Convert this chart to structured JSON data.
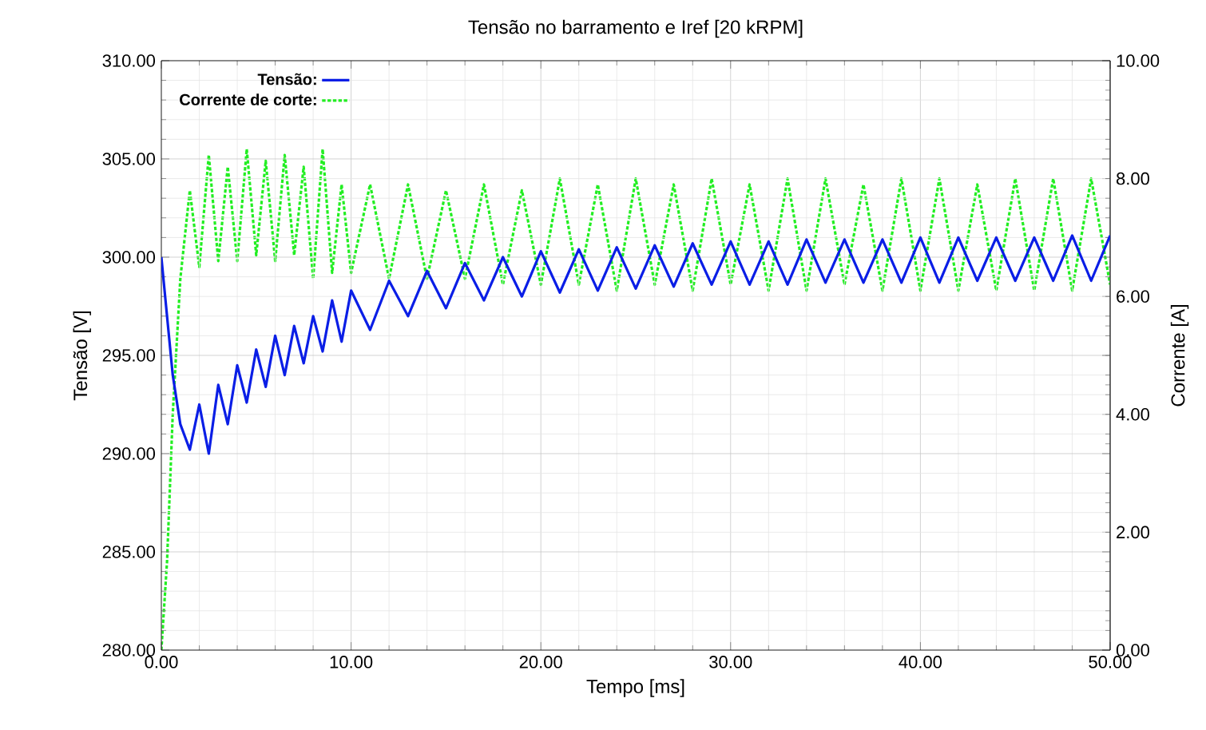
{
  "chart_data": {
    "type": "line",
    "title": "Tensão no barramento e Iref [20 kRPM]",
    "xlabel": "Tempo [ms]",
    "ylabel": "Tensão [V]",
    "y2label": "Corrente [A]",
    "xlim": [
      0,
      50
    ],
    "xticks": [
      {
        "value": 0,
        "label": "0.00"
      },
      {
        "value": 10,
        "label": "10.00"
      },
      {
        "value": 20,
        "label": "20.00"
      },
      {
        "value": 30,
        "label": "30.00"
      },
      {
        "value": 40,
        "label": "40.00"
      },
      {
        "value": 50,
        "label": "50.00"
      }
    ],
    "ylim": [
      280,
      310
    ],
    "yticks": [
      {
        "value": 280,
        "label": "280.00"
      },
      {
        "value": 285,
        "label": "285.00"
      },
      {
        "value": 290,
        "label": "290.00"
      },
      {
        "value": 295,
        "label": "295.00"
      },
      {
        "value": 300,
        "label": "300.00"
      },
      {
        "value": 305,
        "label": "305.00"
      },
      {
        "value": 310,
        "label": "310.00"
      }
    ],
    "y2lim": [
      0,
      10
    ],
    "y2ticks": [
      {
        "value": 0,
        "label": "0.00"
      },
      {
        "value": 2,
        "label": "2.00"
      },
      {
        "value": 4,
        "label": "4.00"
      },
      {
        "value": 6,
        "label": "6.00"
      },
      {
        "value": 8,
        "label": "8.00"
      },
      {
        "value": 10,
        "label": "10.00"
      }
    ],
    "grid": true,
    "legend": "top left",
    "marker": "none",
    "series": [
      {
        "name": "Tensão:",
        "color": "#0a1ee6",
        "line_style": "solid",
        "x": [
          0,
          0.3,
          0.6,
          1.0,
          1.5,
          2,
          2.5,
          3,
          3.5,
          4,
          4.5,
          5,
          5.5,
          6,
          6.5,
          7,
          7.5,
          8,
          8.5,
          9,
          9.5,
          10,
          11,
          12,
          13,
          14,
          15,
          16,
          17,
          18,
          19,
          20,
          21,
          22,
          23,
          24,
          25,
          26,
          27,
          28,
          29,
          30,
          31,
          32,
          33,
          34,
          35,
          36,
          37,
          38,
          39,
          40,
          41,
          42,
          43,
          44,
          45,
          46,
          47,
          48,
          49,
          50
        ],
        "values": [
          300,
          297,
          294,
          291.5,
          290.2,
          292.5,
          290,
          293.5,
          291.5,
          294.5,
          292.6,
          295.3,
          293.4,
          296,
          294,
          296.5,
          294.6,
          297,
          295.2,
          297.8,
          295.7,
          298.3,
          296.3,
          298.8,
          297,
          299.3,
          297.4,
          299.7,
          297.8,
          300,
          298,
          300.3,
          298.2,
          300.4,
          298.3,
          300.5,
          298.4,
          300.6,
          298.5,
          300.7,
          298.6,
          300.8,
          298.6,
          300.8,
          298.6,
          300.9,
          298.7,
          300.9,
          298.7,
          300.9,
          298.7,
          301,
          298.7,
          301,
          298.8,
          301,
          298.8,
          301,
          298.8,
          301.1,
          298.8,
          301.1
        ]
      },
      {
        "name": "Corrente de corte:",
        "color": "#22ee22",
        "line_style": "dashed",
        "axis": "y2",
        "x": [
          0,
          0.3,
          0.6,
          1.0,
          1.5,
          2,
          2.5,
          3,
          3.5,
          4,
          4.5,
          5,
          5.5,
          6,
          6.5,
          7,
          7.5,
          8,
          8.5,
          9,
          9.5,
          10,
          11,
          12,
          13,
          14,
          15,
          16,
          17,
          18,
          19,
          20,
          21,
          22,
          23,
          24,
          25,
          26,
          27,
          28,
          29,
          30,
          31,
          32,
          33,
          34,
          35,
          36,
          37,
          38,
          39,
          40,
          41,
          42,
          43,
          44,
          45,
          46,
          47,
          48,
          49,
          50
        ],
        "values": [
          0,
          1.5,
          4,
          6.3,
          7.8,
          6.5,
          8.4,
          6.6,
          8.2,
          6.6,
          8.5,
          6.7,
          8.3,
          6.6,
          8.4,
          6.7,
          8.2,
          6.3,
          8.5,
          6.4,
          7.9,
          6.4,
          7.9,
          6.3,
          7.9,
          6.3,
          7.8,
          6.3,
          7.9,
          6.2,
          7.8,
          6.2,
          8.0,
          6.2,
          7.9,
          6.1,
          8.0,
          6.2,
          7.9,
          6.1,
          8.0,
          6.2,
          7.9,
          6.1,
          8.0,
          6.1,
          8.0,
          6.2,
          7.9,
          6.1,
          8.0,
          6.1,
          8.0,
          6.1,
          7.9,
          6.1,
          8.0,
          6.1,
          8.0,
          6.1,
          8.0,
          6.2
        ]
      }
    ]
  }
}
